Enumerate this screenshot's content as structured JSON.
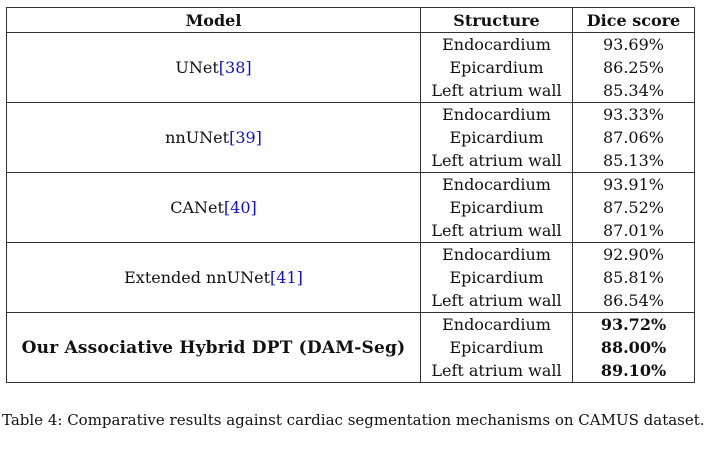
{
  "table": {
    "headers": [
      "Model",
      "Structure",
      "Dice score"
    ],
    "groups": [
      {
        "model": "UNet",
        "ref": "[38]",
        "bold": false,
        "rows": [
          {
            "structure": "Endocardium",
            "dice": "93.69%",
            "bold": false
          },
          {
            "structure": "Epicardium",
            "dice": "86.25%",
            "bold": false
          },
          {
            "structure": "Left atrium wall",
            "dice": "85.34%",
            "bold": false
          }
        ]
      },
      {
        "model": "nnUNet",
        "ref": "[39]",
        "bold": false,
        "rows": [
          {
            "structure": "Endocardium",
            "dice": "93.33%",
            "bold": false
          },
          {
            "structure": "Epicardium",
            "dice": "87.06%",
            "bold": false
          },
          {
            "structure": "Left atrium wall",
            "dice": "85.13%",
            "bold": false
          }
        ]
      },
      {
        "model": "CANet",
        "ref": "[40]",
        "bold": false,
        "rows": [
          {
            "structure": "Endocardium",
            "dice": "93.91%",
            "bold": false
          },
          {
            "structure": "Epicardium",
            "dice": "87.52%",
            "bold": false
          },
          {
            "structure": "Left atrium wall",
            "dice": "87.01%",
            "bold": false
          }
        ]
      },
      {
        "model": "Extended nnUNet",
        "ref": "[41]",
        "bold": false,
        "rows": [
          {
            "structure": "Endocardium",
            "dice": "92.90%",
            "bold": false
          },
          {
            "structure": "Epicardium",
            "dice": "85.81%",
            "bold": false
          },
          {
            "structure": "Left atrium wall",
            "dice": "86.54%",
            "bold": false
          }
        ]
      },
      {
        "model": "Our Associative Hybrid DPT (DAM-Seg)",
        "ref": "",
        "bold": true,
        "rows": [
          {
            "structure": "Endocardium",
            "dice": "93.72%",
            "bold": true
          },
          {
            "structure": "Epicardium",
            "dice": "88.00%",
            "bold": true
          },
          {
            "structure": "Left atrium wall",
            "dice": "89.10%",
            "bold": true
          }
        ]
      }
    ]
  },
  "caption": "Table 4:  Comparative results against cardiac segmentation mechanisms on CAMUS dataset.",
  "colors": {
    "reference_link": "#1010cc",
    "rule": "#333333"
  }
}
